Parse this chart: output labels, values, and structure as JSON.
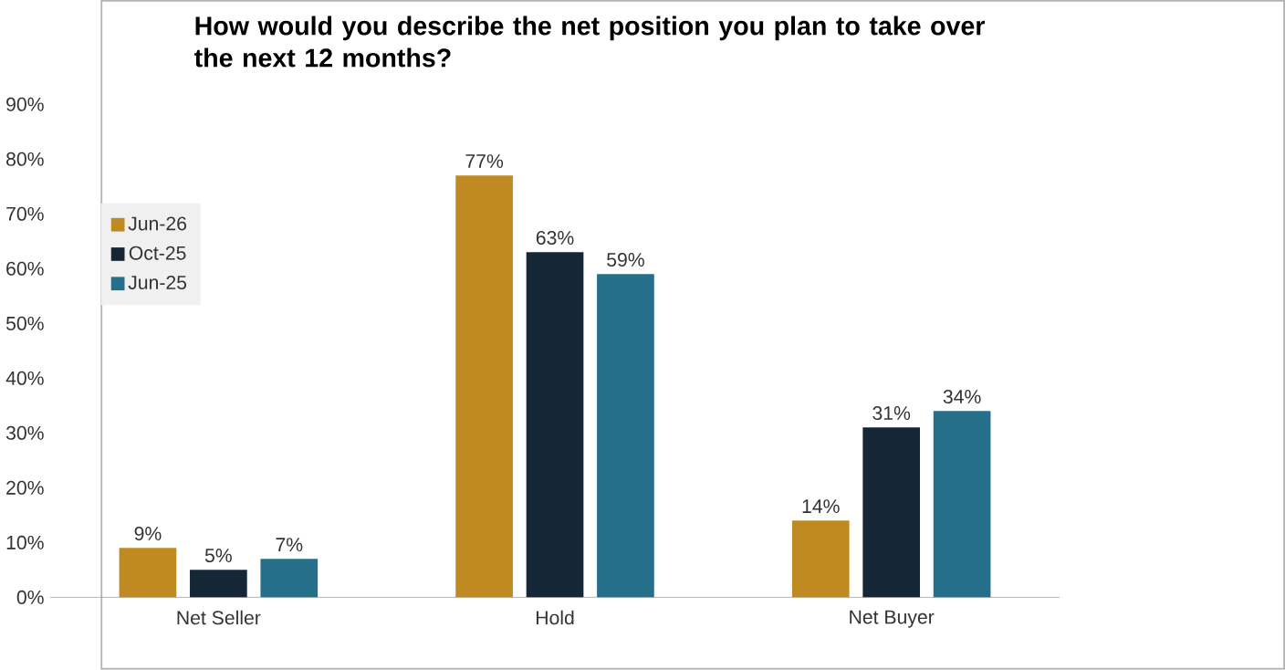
{
  "chart_data": {
    "type": "bar",
    "title": "How would you describe the net position you plan to take over the next 12 months?",
    "categories": [
      "Net Seller",
      "Hold",
      "Net Buyer"
    ],
    "series": [
      {
        "name": "Jun-26",
        "color": "#c08a22",
        "values": [
          9,
          77,
          14
        ],
        "value_labels": [
          "9%",
          "77%",
          "14%"
        ]
      },
      {
        "name": "Oct-25",
        "color": "#152736",
        "values": [
          5,
          63,
          31
        ],
        "value_labels": [
          "5%",
          "63%",
          "31%"
        ]
      },
      {
        "name": "Jun-25",
        "color": "#266f8a",
        "values": [
          7,
          59,
          34
        ],
        "value_labels": [
          "7%",
          "59%",
          "34%"
        ]
      }
    ],
    "ylim": [
      0,
      90
    ],
    "yticks": [
      {
        "value": 0,
        "label": "0%"
      },
      {
        "value": 10,
        "label": "10%"
      },
      {
        "value": 20,
        "label": "20%"
      },
      {
        "value": 30,
        "label": "30%"
      },
      {
        "value": 40,
        "label": "40%"
      },
      {
        "value": 50,
        "label": "50%"
      },
      {
        "value": 60,
        "label": "60%"
      },
      {
        "value": 70,
        "label": "70%"
      },
      {
        "value": 80,
        "label": "80%"
      },
      {
        "value": 90,
        "label": "90%"
      }
    ],
    "grid": false,
    "legend": "top left"
  }
}
